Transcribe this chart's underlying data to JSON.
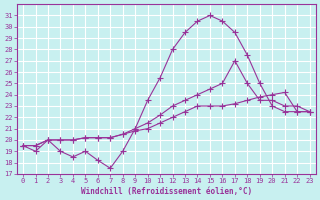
{
  "xlabel": "Windchill (Refroidissement éolien,°C)",
  "bg_color": "#c8f0f0",
  "grid_color": "#ffffff",
  "line_color": "#993399",
  "ylim": [
    17,
    32
  ],
  "xlim": [
    -0.5,
    23.5
  ],
  "yticks": [
    17,
    18,
    19,
    20,
    21,
    22,
    23,
    24,
    25,
    26,
    27,
    28,
    29,
    30,
    31
  ],
  "xticks": [
    0,
    1,
    2,
    3,
    4,
    5,
    6,
    7,
    8,
    9,
    10,
    11,
    12,
    13,
    14,
    15,
    16,
    17,
    18,
    19,
    20,
    21,
    22,
    23
  ],
  "line1_x": [
    0,
    1,
    2,
    3,
    4,
    5,
    6,
    7,
    8,
    9,
    10,
    11,
    12,
    13,
    14,
    15,
    16,
    17,
    18,
    19,
    20,
    21,
    22,
    23
  ],
  "line1_y": [
    19.5,
    19.0,
    20.0,
    19.0,
    18.5,
    19.0,
    18.2,
    17.5,
    19.0,
    21.0,
    23.5,
    25.5,
    28.0,
    29.5,
    30.5,
    31.0,
    30.5,
    29.5,
    27.5,
    25.0,
    23.0,
    22.5,
    22.5,
    22.5
  ],
  "line2_x": [
    0,
    1,
    2,
    3,
    4,
    5,
    6,
    7,
    8,
    9,
    10,
    11,
    12,
    13,
    14,
    15,
    16,
    17,
    18,
    19,
    20,
    21,
    22,
    23
  ],
  "line2_y": [
    19.5,
    19.5,
    20.0,
    20.0,
    20.0,
    20.2,
    20.2,
    20.2,
    20.5,
    21.0,
    21.5,
    22.2,
    23.0,
    23.5,
    24.0,
    24.5,
    25.0,
    27.0,
    25.0,
    23.5,
    23.5,
    23.0,
    23.0,
    22.5
  ],
  "line3_x": [
    0,
    1,
    2,
    3,
    4,
    5,
    6,
    7,
    8,
    9,
    10,
    11,
    12,
    13,
    14,
    15,
    16,
    17,
    18,
    19,
    20,
    21,
    22,
    23
  ],
  "line3_y": [
    19.5,
    19.5,
    20.0,
    20.0,
    20.0,
    20.2,
    20.2,
    20.2,
    20.5,
    20.8,
    21.0,
    21.5,
    22.0,
    22.5,
    23.0,
    23.0,
    23.0,
    23.2,
    23.5,
    23.8,
    24.0,
    24.2,
    22.5,
    22.5
  ]
}
